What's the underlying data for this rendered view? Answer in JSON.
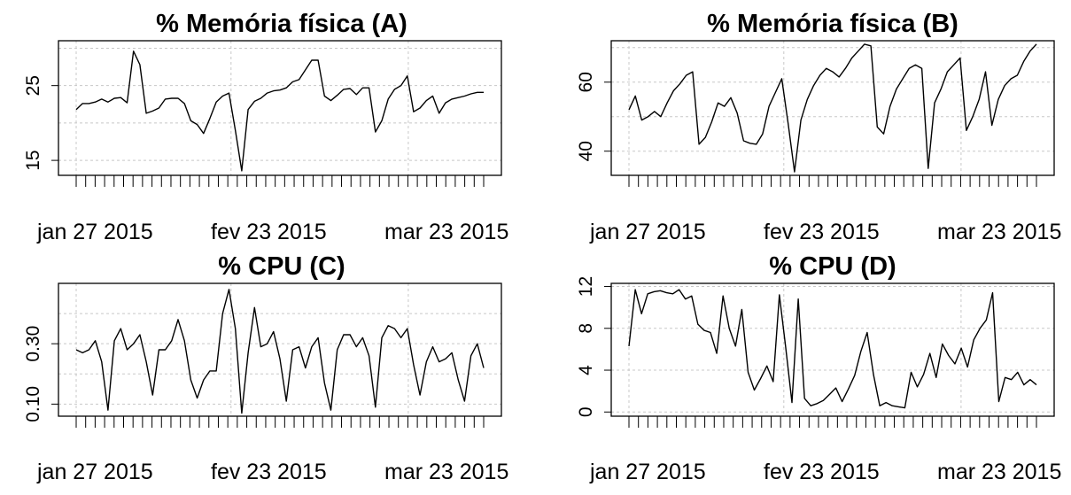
{
  "chart_data": [
    {
      "type": "line",
      "title": "% Memória física (A)",
      "xlabel": "",
      "ylabel": "",
      "x_tick_labels": [
        "jan 27 2015",
        "fev 23 2015",
        "mar 23 2015"
      ],
      "ylim": [
        13,
        31
      ],
      "yticks": [
        15,
        25
      ],
      "y_tick_labels": [
        "15",
        "25"
      ],
      "y_grid": [
        15,
        20,
        25,
        30
      ],
      "grid": true,
      "series": [
        {
          "values": [
            21.8,
            22.6,
            22.6,
            22.8,
            23.2,
            22.8,
            23.3,
            23.4,
            22.7,
            29.6,
            27.8,
            21.3,
            21.6,
            22.0,
            23.2,
            23.3,
            23.3,
            22.6,
            20.3,
            19.8,
            18.6,
            20.6,
            22.8,
            23.6,
            24.0,
            19.0,
            13.6,
            21.8,
            22.9,
            23.3,
            24.0,
            24.3,
            24.4,
            24.7,
            25.5,
            25.8,
            27.1,
            28.4,
            28.4,
            23.6,
            23.0,
            23.7,
            24.5,
            24.6,
            23.8,
            24.7,
            24.7,
            18.8,
            20.3,
            23.2,
            24.5,
            25.0,
            26.3,
            21.5,
            22.0,
            23.0,
            23.6,
            21.3,
            22.7,
            23.2,
            23.4,
            23.6,
            23.9,
            24.1,
            24.1
          ]
        }
      ]
    },
    {
      "type": "line",
      "title": "% Memória física (B)",
      "xlabel": "",
      "ylabel": "",
      "x_tick_labels": [
        "jan 27 2015",
        "fev 23 2015",
        "mar 23 2015"
      ],
      "ylim": [
        33,
        72
      ],
      "yticks": [
        40,
        60
      ],
      "y_tick_labels": [
        "40",
        "60"
      ],
      "y_grid": [
        40,
        50,
        60,
        70
      ],
      "grid": true,
      "series": [
        {
          "values": [
            52,
            56,
            49,
            50,
            51.5,
            50,
            54,
            57.5,
            59.5,
            62,
            63,
            42,
            44,
            48.5,
            54,
            53,
            55.5,
            51,
            43,
            42.3,
            42,
            45,
            53,
            57,
            61,
            48,
            34,
            49,
            55,
            59,
            62,
            64,
            63,
            61.5,
            64,
            67,
            69,
            71,
            70.5,
            47,
            45,
            53,
            58,
            61,
            64,
            65,
            64,
            35,
            54,
            58,
            63,
            65,
            67,
            46,
            50,
            55,
            63,
            47.5,
            55,
            59,
            61,
            62,
            66,
            69,
            71
          ]
        }
      ]
    },
    {
      "type": "line",
      "title": "% CPU (C)",
      "xlabel": "",
      "ylabel": "",
      "x_tick_labels": [
        "jan 27 2015",
        "fev 23 2015",
        "mar 23 2015"
      ],
      "ylim": [
        0.06,
        0.5
      ],
      "yticks": [
        0.1,
        0.3
      ],
      "y_tick_labels": [
        "0.10",
        "0.30"
      ],
      "y_grid": [
        0.1,
        0.2,
        0.3,
        0.4
      ],
      "grid": true,
      "series": [
        {
          "values": [
            0.28,
            0.27,
            0.28,
            0.31,
            0.24,
            0.08,
            0.31,
            0.35,
            0.28,
            0.3,
            0.33,
            0.24,
            0.13,
            0.28,
            0.28,
            0.31,
            0.38,
            0.31,
            0.18,
            0.12,
            0.18,
            0.21,
            0.21,
            0.4,
            0.48,
            0.35,
            0.07,
            0.27,
            0.42,
            0.29,
            0.3,
            0.34,
            0.25,
            0.11,
            0.28,
            0.29,
            0.22,
            0.29,
            0.32,
            0.17,
            0.08,
            0.28,
            0.33,
            0.33,
            0.29,
            0.32,
            0.26,
            0.09,
            0.32,
            0.36,
            0.35,
            0.32,
            0.35,
            0.23,
            0.13,
            0.24,
            0.29,
            0.24,
            0.25,
            0.27,
            0.18,
            0.11,
            0.26,
            0.3,
            0.22
          ]
        }
      ]
    },
    {
      "type": "line",
      "title": "% CPU (D)",
      "xlabel": "",
      "ylabel": "",
      "x_tick_labels": [
        "jan 27 2015",
        "fev 23 2015",
        "mar 23 2015"
      ],
      "ylim": [
        -0.4,
        12.3
      ],
      "yticks": [
        0,
        4,
        8,
        12
      ],
      "y_tick_labels": [
        "0",
        "4",
        "8",
        "12"
      ],
      "y_grid": [
        0,
        4,
        8,
        12
      ],
      "grid": true,
      "series": [
        {
          "values": [
            6.3,
            11.7,
            9.4,
            11.3,
            11.5,
            11.6,
            11.4,
            11.3,
            11.7,
            10.8,
            11.1,
            8.4,
            7.8,
            7.6,
            5.6,
            11.1,
            8.0,
            6.3,
            9.8,
            3.8,
            2.1,
            3.2,
            4.4,
            2.9,
            11.2,
            6.2,
            0.9,
            10.8,
            1.3,
            0.6,
            0.8,
            1.1,
            1.7,
            2.3,
            1.0,
            2.2,
            3.5,
            5.8,
            7.6,
            3.6,
            0.6,
            0.9,
            0.6,
            0.5,
            0.4,
            3.8,
            2.4,
            3.6,
            5.6,
            3.3,
            6.5,
            5.4,
            4.6,
            6.1,
            4.3,
            6.9,
            8.0,
            8.8,
            11.4,
            1.0,
            3.3,
            3.1,
            3.8,
            2.6,
            3.1,
            2.6
          ]
        }
      ]
    }
  ]
}
